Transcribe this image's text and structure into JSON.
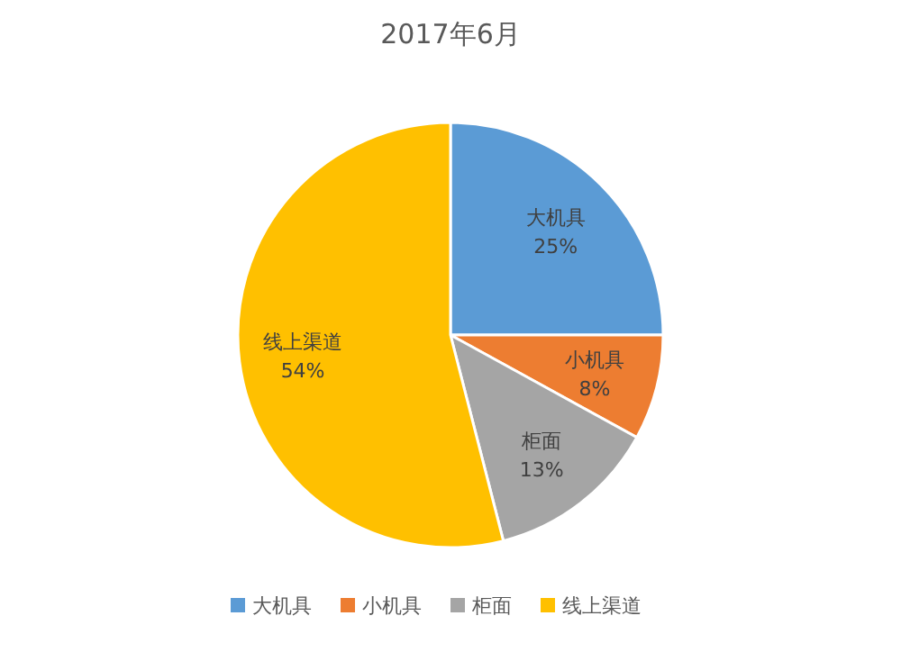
{
  "chart_data": {
    "type": "pie",
    "title": "2017年6月",
    "categories": [
      "大机具",
      "小机具",
      "柜面",
      "线上渠道"
    ],
    "values": [
      25,
      8,
      13,
      54
    ],
    "value_labels": [
      "25%",
      "8%",
      "13%",
      "54%"
    ],
    "colors": [
      "#5b9bd5",
      "#ed7d31",
      "#a5a5a5",
      "#ffc000"
    ],
    "legend": "bottom"
  }
}
